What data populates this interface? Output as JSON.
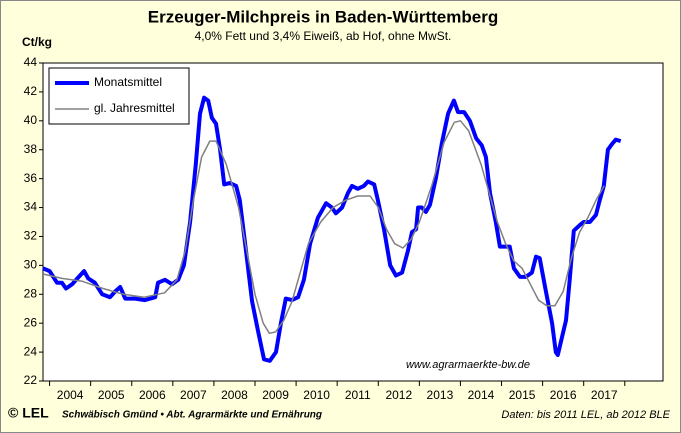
{
  "chart_data": {
    "type": "line",
    "title": "Erzeuger-Milchpreis in Baden-Württemberg",
    "subtitle": "4,0% Fett und 3,4% Eiweiß, ab Hof, ohne MwSt.",
    "y_label": "Ct/kg",
    "annotation": "www.agrarmaerkte-bw.de",
    "footer_logo": "© LEL",
    "footer_left": "Schwäbisch Gmünd • Abt. Agrarmärkte und Ernährung",
    "footer_right": "Daten: bis 2011 LEL, ab 2012 BLE",
    "legend": "top-left",
    "ylim": [
      22,
      44
    ],
    "yticks": [
      22,
      24,
      26,
      28,
      30,
      32,
      34,
      36,
      38,
      40,
      42,
      44
    ],
    "xlim": [
      2003.84,
      2018.93
    ],
    "xticks": [
      {
        "value": 2004.5,
        "label": "2004"
      },
      {
        "value": 2005.5,
        "label": "2005"
      },
      {
        "value": 2006.5,
        "label": "2006"
      },
      {
        "value": 2007.5,
        "label": "2007"
      },
      {
        "value": 2008.5,
        "label": "2008"
      },
      {
        "value": 2009.5,
        "label": "2009"
      },
      {
        "value": 2010.5,
        "label": "2010"
      },
      {
        "value": 2011.5,
        "label": "2011"
      },
      {
        "value": 2012.5,
        "label": "2012"
      },
      {
        "value": 2013.5,
        "label": "2013"
      },
      {
        "value": 2014.5,
        "label": "2014"
      },
      {
        "value": 2015.5,
        "label": "2015"
      },
      {
        "value": 2016.5,
        "label": "2016"
      },
      {
        "value": 2017.5,
        "label": "2017"
      }
    ],
    "xtick_marks": [
      2004,
      2005,
      2006,
      2007,
      2008,
      2009,
      2010,
      2011,
      2012,
      2013,
      2014,
      2015,
      2016,
      2017,
      2018
    ],
    "series": [
      {
        "name": "Monatsmittel",
        "color": "#0000ff",
        "width": 4,
        "x": [
          2003.84,
          2004.0,
          2004.18,
          2004.3,
          2004.4,
          2004.55,
          2004.74,
          2004.84,
          2004.94,
          2005.1,
          2005.28,
          2005.47,
          2005.6,
          2005.72,
          2005.84,
          2006.08,
          2006.32,
          2006.57,
          2006.64,
          2006.81,
          2006.98,
          2007.13,
          2007.27,
          2007.42,
          2007.56,
          2007.66,
          2007.76,
          2007.86,
          2007.95,
          2008.05,
          2008.15,
          2008.25,
          2008.39,
          2008.54,
          2008.63,
          2008.78,
          2008.93,
          2009.07,
          2009.22,
          2009.36,
          2009.51,
          2009.63,
          2009.75,
          2009.9,
          2010.05,
          2010.19,
          2010.34,
          2010.53,
          2010.73,
          2010.87,
          2010.97,
          2011.12,
          2011.26,
          2011.36,
          2011.5,
          2011.65,
          2011.75,
          2011.9,
          2011.99,
          2012.14,
          2012.29,
          2012.43,
          2012.58,
          2012.72,
          2012.82,
          2012.92,
          2012.97,
          2013.06,
          2013.16,
          2013.26,
          2013.4,
          2013.55,
          2013.7,
          2013.84,
          2013.94,
          2014.09,
          2014.23,
          2014.38,
          2014.52,
          2014.62,
          2014.72,
          2014.86,
          2014.96,
          2015.11,
          2015.2,
          2015.3,
          2015.45,
          2015.59,
          2015.74,
          2015.84,
          2015.93,
          2016.08,
          2016.23,
          2016.32,
          2016.37,
          2016.47,
          2016.57,
          2016.66,
          2016.76,
          2016.91,
          2017.0,
          2017.15,
          2017.3,
          2017.39,
          2017.49,
          2017.59,
          2017.69,
          2017.78,
          2017.9
        ],
        "values": [
          29.8,
          29.6,
          28.8,
          28.8,
          28.4,
          28.7,
          29.3,
          29.6,
          29.1,
          28.8,
          28.0,
          27.8,
          28.2,
          28.5,
          27.7,
          27.7,
          27.6,
          27.8,
          28.8,
          29.0,
          28.7,
          29.0,
          30.0,
          33.0,
          37.0,
          40.5,
          41.6,
          41.4,
          40.2,
          39.8,
          38.0,
          35.6,
          35.7,
          35.5,
          34.5,
          31.0,
          27.5,
          25.5,
          23.5,
          23.4,
          24.0,
          26.0,
          27.7,
          27.6,
          27.8,
          29.0,
          31.5,
          33.3,
          34.3,
          34.0,
          33.6,
          34.0,
          35.0,
          35.5,
          35.3,
          35.5,
          35.8,
          35.6,
          34.5,
          32.5,
          30.0,
          29.3,
          29.5,
          31.0,
          32.3,
          32.5,
          34.0,
          34.0,
          33.7,
          34.2,
          36.0,
          38.5,
          40.5,
          41.4,
          40.6,
          40.6,
          40.0,
          38.8,
          38.3,
          37.5,
          35.0,
          33.0,
          31.3,
          31.3,
          31.3,
          29.8,
          29.2,
          29.2,
          29.5,
          30.6,
          30.5,
          28.2,
          26.0,
          24.0,
          23.8,
          25.0,
          26.2,
          29.0,
          32.4,
          32.8,
          33.0,
          33.0,
          33.5,
          34.5,
          35.5,
          38.0,
          38.4,
          38.7,
          38.6
        ]
      },
      {
        "name": "gl. Jahresmittel",
        "color": "#808080",
        "width": 1.5,
        "x": [
          2003.84,
          2004.3,
          2004.8,
          2005.3,
          2005.8,
          2006.3,
          2006.8,
          2007.1,
          2007.3,
          2007.5,
          2007.7,
          2007.9,
          2008.05,
          2008.3,
          2008.6,
          2008.8,
          2009.0,
          2009.2,
          2009.35,
          2009.5,
          2009.7,
          2009.9,
          2010.1,
          2010.3,
          2010.6,
          2010.9,
          2011.2,
          2011.5,
          2011.8,
          2012.0,
          2012.2,
          2012.4,
          2012.6,
          2012.8,
          2013.0,
          2013.3,
          2013.6,
          2013.85,
          2014.0,
          2014.2,
          2014.5,
          2014.7,
          2014.9,
          2015.1,
          2015.3,
          2015.5,
          2015.7,
          2015.9,
          2016.1,
          2016.3,
          2016.5,
          2016.7,
          2016.9,
          2017.1,
          2017.3,
          2017.5
        ],
        "values": [
          29.4,
          29.1,
          28.9,
          28.4,
          28.0,
          27.8,
          28.1,
          29.0,
          31.0,
          34.5,
          37.5,
          38.6,
          38.6,
          37.0,
          34.0,
          31.0,
          28.0,
          26.0,
          25.3,
          25.4,
          26.2,
          27.5,
          29.5,
          31.5,
          33.0,
          34.0,
          34.5,
          34.8,
          34.8,
          34.0,
          32.5,
          31.5,
          31.2,
          31.8,
          33.0,
          35.5,
          38.5,
          39.9,
          40.0,
          39.3,
          37.0,
          35.0,
          33.0,
          31.5,
          30.3,
          29.8,
          28.7,
          27.6,
          27.2,
          27.2,
          28.2,
          30.5,
          32.3,
          33.3,
          34.5,
          35.5
        ]
      }
    ]
  }
}
